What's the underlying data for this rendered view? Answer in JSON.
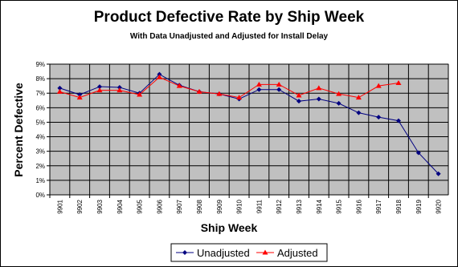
{
  "chart_data": {
    "type": "line",
    "title": "Product Defective Rate by Ship Week",
    "subtitle": "With Data Unadjusted and Adjusted for Install Delay",
    "x_label": "Ship Week",
    "y_label": "Percent Defective",
    "categories": [
      "9901",
      "9902",
      "9903",
      "9904",
      "9905",
      "9906",
      "9907",
      "9908",
      "9909",
      "9910",
      "9911",
      "9912",
      "9913",
      "9914",
      "9915",
      "9916",
      "9917",
      "9918",
      "9919",
      "9920"
    ],
    "series": [
      {
        "name": "Unadjusted",
        "color": "#000080",
        "marker": "diamond",
        "values": [
          7.35,
          6.9,
          7.45,
          7.4,
          7.0,
          8.3,
          7.55,
          7.1,
          6.95,
          6.6,
          7.25,
          7.25,
          6.45,
          6.6,
          6.3,
          5.65,
          5.35,
          5.1,
          2.9,
          1.45
        ]
      },
      {
        "name": "Adjusted",
        "color": "#ff0000",
        "marker": "triangle",
        "values": [
          7.1,
          6.7,
          7.2,
          7.2,
          6.9,
          8.1,
          7.5,
          7.1,
          6.95,
          6.7,
          7.6,
          7.6,
          6.85,
          7.35,
          6.95,
          6.7,
          7.5,
          7.7,
          null,
          null
        ]
      }
    ],
    "ylim": [
      0,
      9
    ],
    "yticks": [
      {
        "value": 0,
        "label": "0%"
      },
      {
        "value": 1,
        "label": "1%"
      },
      {
        "value": 2,
        "label": "2%"
      },
      {
        "value": 3,
        "label": "3%"
      },
      {
        "value": 4,
        "label": "4%"
      },
      {
        "value": 5,
        "label": "5%"
      },
      {
        "value": 6,
        "label": "6%"
      },
      {
        "value": 7,
        "label": "7%"
      },
      {
        "value": 8,
        "label": "8%"
      },
      {
        "value": 9,
        "label": "9%"
      }
    ],
    "grid": true,
    "plot_background": "#c0c0c0",
    "legend": "bottom"
  }
}
